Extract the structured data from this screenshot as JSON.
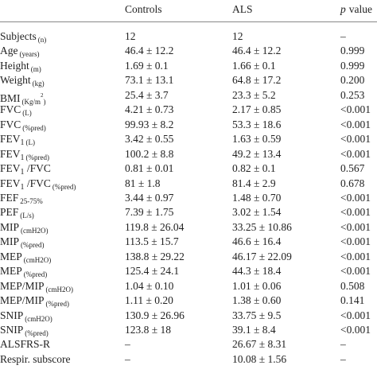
{
  "table": {
    "header": [
      "Controls",
      "ALS",
      {
        "italic": "p",
        "rest": "value"
      }
    ],
    "rows": [
      {
        "label": [
          "Subjects",
          "(n)"
        ],
        "cells": [
          "12",
          "12",
          "–"
        ]
      },
      {
        "label": [
          "Age",
          "(years)"
        ],
        "cells": [
          "46.4 ± 12.2",
          "46.4 ± 12.2",
          "0.999"
        ]
      },
      {
        "label": [
          "Height",
          "(m)"
        ],
        "cells": [
          "1.69 ± 0.1",
          "1.66 ± 0.1",
          "0.999"
        ]
      },
      {
        "label": [
          "Weight",
          "(kg)"
        ],
        "cells": [
          "73.1 ± 13.1",
          "64.8 ± 17.2",
          "0.200"
        ]
      },
      {
        "label": [
          "BMI",
          "(Kg/m",
          "2",
          ")"
        ],
        "cells": [
          "25.4 ± 3.7",
          "23.3 ± 5.2",
          "0.253"
        ]
      },
      {
        "label": [
          "FVC",
          "(L)"
        ],
        "cells": [
          "4.21 ± 0.73",
          "2.17 ± 0.85",
          "<0.001"
        ]
      },
      {
        "label": [
          "FVC",
          "(%pred)"
        ],
        "cells": [
          "99.93 ± 8.2",
          "53.3 ± 18.6",
          "<0.001"
        ]
      },
      {
        "label": [
          "FEV",
          "1",
          "(L)"
        ],
        "cells": [
          "3.42 ± 0.55",
          "1.63 ± 0.59",
          "<0.001"
        ]
      },
      {
        "label": [
          "FEV",
          "1",
          "(%pred)"
        ],
        "cells": [
          "100.2 ± 8.8",
          "49.2 ± 13.4",
          "<0.001"
        ]
      },
      {
        "label": [
          "FEV",
          "1",
          " /FVC"
        ],
        "cells": [
          "0.81 ± 0.01",
          "0.82 ± 0.1",
          "0.567"
        ]
      },
      {
        "label": [
          "FEV",
          "1",
          " /FVC",
          "(%pred)"
        ],
        "cells": [
          "81 ± 1.8",
          "81.4 ± 2.9",
          "0.678"
        ]
      },
      {
        "label": [
          "FEF",
          "25-75%"
        ],
        "cells": [
          "3.44 ± 0.97",
          "1.48 ± 0.70",
          "<0.001"
        ]
      },
      {
        "label": [
          "PEF",
          "(L/s)"
        ],
        "cells": [
          "7.39 ± 1.75",
          "3.02 ± 1.54",
          "<0.001"
        ]
      },
      {
        "label": [
          "MIP",
          "(cmH2O)"
        ],
        "cells": [
          "119.8 ± 26.04",
          "33.25 ± 10.86",
          "<0.001"
        ]
      },
      {
        "label": [
          "MIP",
          "(%pred)"
        ],
        "cells": [
          "113.5 ± 15.7",
          "46.6 ± 16.4",
          "<0.001"
        ]
      },
      {
        "label": [
          "MEP",
          "(cmH2O)"
        ],
        "cells": [
          "138.8 ± 29.22",
          "46.17 ± 22.09",
          "<0.001"
        ]
      },
      {
        "label": [
          "MEP",
          "(%pred)"
        ],
        "cells": [
          "125.4 ± 24.1",
          "44.3 ± 18.4",
          "<0.001"
        ]
      },
      {
        "label": [
          "MEP/MIP",
          "(cmH2O)"
        ],
        "cells": [
          "1.04 ± 0.10",
          "1.01 ± 0.06",
          "0.508"
        ]
      },
      {
        "label": [
          "MEP/MIP",
          "(%pred)"
        ],
        "cells": [
          "1.11 ± 0.20",
          "1.38 ± 0.60",
          "0.141"
        ]
      },
      {
        "label": [
          "SNIP",
          "(cmH2O)"
        ],
        "cells": [
          "130.9 ± 26.96",
          "33.75 ± 9.5",
          "<0.001"
        ]
      },
      {
        "label": [
          "SNIP",
          "(%pred)"
        ],
        "cells": [
          "123.8 ± 18",
          "39.1 ± 8.4",
          "<0.001"
        ]
      },
      {
        "label": [
          "ALSFRS-R"
        ],
        "cells": [
          "–",
          "26.67 ± 8.31",
          "–"
        ]
      },
      {
        "label": [
          "Respir. subscore"
        ],
        "cells": [
          "–",
          "10.08 ± 1.56",
          "–"
        ]
      }
    ]
  }
}
